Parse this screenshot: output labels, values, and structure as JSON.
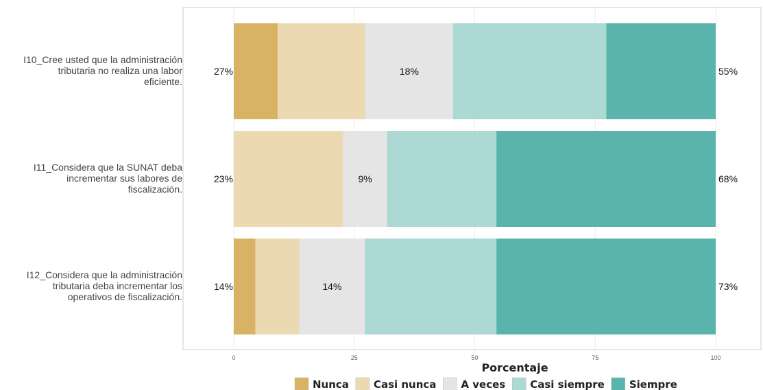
{
  "chart_data": {
    "type": "bar",
    "orientation": "horizontal",
    "stacked": true,
    "xlabel": "Porcentaje",
    "ylabel": "",
    "xlim": [
      0,
      100
    ],
    "x_ticks": [
      {
        "value": 0,
        "label": "0"
      },
      {
        "value": 25,
        "label": "25"
      },
      {
        "value": 50,
        "label": "50"
      },
      {
        "value": 75,
        "label": "75"
      },
      {
        "value": 100,
        "label": "100"
      }
    ],
    "grid": true,
    "legend_position": "bottom",
    "categories": [
      "I10_Cree usted que la administración tributaria no realiza una labor eficiente.",
      "I11_Considera que la SUNAT deba incrementar sus labores de fiscalización.",
      "I12_Considera que la administración tributaria deba incrementar los operativos de fiscalización."
    ],
    "category_label_lines": [
      [
        "I10_Cree usted que la administración",
        "tributaria no realiza una labor",
        "eficiente."
      ],
      [
        "I11_Considera que la SUNAT deba",
        "incrementar sus labores de",
        "fiscalización."
      ],
      [
        "I12_Considera que la administración",
        "tributaria deba incrementar los",
        "operativos de fiscalización."
      ]
    ],
    "series": [
      {
        "name": "Nunca",
        "color": "#D9B365",
        "values": [
          9.1,
          0,
          4.5
        ]
      },
      {
        "name": "Casi nunca",
        "color": "#EBD9B2",
        "values": [
          18.2,
          22.7,
          9.1
        ]
      },
      {
        "name": "A veces",
        "color": "#E5E5E5",
        "values": [
          18.2,
          9.1,
          13.6
        ]
      },
      {
        "name": "Casi siempre",
        "color": "#ADD9D5",
        "values": [
          31.8,
          22.7,
          27.3
        ]
      },
      {
        "name": "Siempre",
        "color": "#5AB4AC",
        "values": [
          22.7,
          45.5,
          45.5
        ]
      }
    ],
    "left_labels": [
      "27%",
      "23%",
      "14%"
    ],
    "center_labels": [
      "18%",
      "9%",
      "14%"
    ],
    "right_labels": [
      "55%",
      "68%",
      "73%"
    ]
  }
}
